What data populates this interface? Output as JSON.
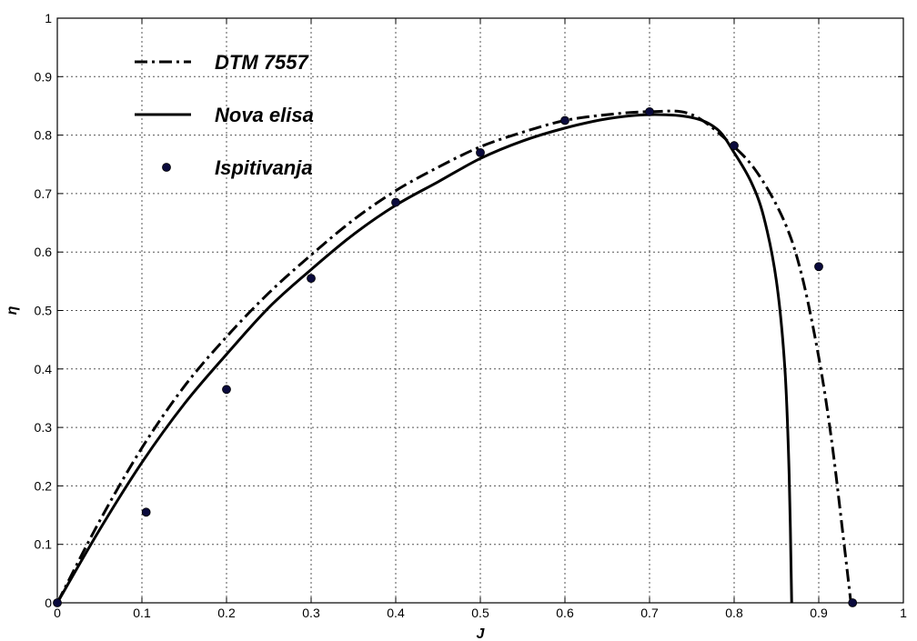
{
  "chart_data": {
    "type": "line",
    "title": "",
    "xlabel": "J",
    "ylabel": "η",
    "xlim": [
      0,
      1
    ],
    "ylim": [
      0,
      1
    ],
    "grid": true,
    "legend_position": "top-left",
    "x_ticks": [
      "0",
      "0.1",
      "0.2",
      "0.3",
      "0.4",
      "0.5",
      "0.6",
      "0.7",
      "0.8",
      "0.9",
      "1"
    ],
    "y_ticks": [
      "0",
      "0.1",
      "0.2",
      "0.3",
      "0.4",
      "0.5",
      "0.6",
      "0.7",
      "0.8",
      "0.9",
      "1"
    ],
    "series": [
      {
        "name": "DTM 7557",
        "style": "dash-dot",
        "color": "#000000",
        "x": [
          0,
          0.05,
          0.1,
          0.15,
          0.2,
          0.25,
          0.3,
          0.35,
          0.4,
          0.45,
          0.5,
          0.55,
          0.6,
          0.65,
          0.7,
          0.75,
          0.8,
          0.83,
          0.86,
          0.88,
          0.9,
          0.915,
          0.93,
          0.938
        ],
        "y": [
          0,
          0.14,
          0.265,
          0.37,
          0.455,
          0.53,
          0.595,
          0.655,
          0.705,
          0.745,
          0.78,
          0.805,
          0.825,
          0.835,
          0.84,
          0.835,
          0.78,
          0.73,
          0.65,
          0.56,
          0.42,
          0.28,
          0.1,
          0
        ]
      },
      {
        "name": "Nova elisa",
        "style": "solid",
        "color": "#000000",
        "x": [
          0,
          0.05,
          0.1,
          0.15,
          0.2,
          0.25,
          0.3,
          0.35,
          0.4,
          0.45,
          0.5,
          0.55,
          0.6,
          0.65,
          0.7,
          0.75,
          0.78,
          0.8,
          0.82,
          0.835,
          0.85,
          0.86,
          0.865,
          0.868
        ],
        "y": [
          0,
          0.125,
          0.24,
          0.34,
          0.425,
          0.505,
          0.57,
          0.63,
          0.68,
          0.72,
          0.76,
          0.79,
          0.812,
          0.828,
          0.835,
          0.83,
          0.81,
          0.77,
          0.72,
          0.66,
          0.55,
          0.4,
          0.22,
          0
        ]
      },
      {
        "name": "Ispitivanja",
        "style": "markers",
        "color": "#0a0a3c",
        "x": [
          0,
          0.105,
          0.2,
          0.3,
          0.4,
          0.5,
          0.6,
          0.7,
          0.8,
          0.9,
          0.94
        ],
        "y": [
          0,
          0.155,
          0.365,
          0.555,
          0.685,
          0.77,
          0.825,
          0.84,
          0.782,
          0.575,
          0
        ]
      }
    ]
  }
}
